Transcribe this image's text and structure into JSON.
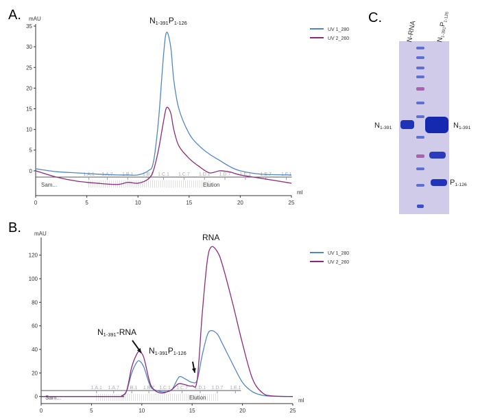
{
  "panel_labels": [
    "A.",
    "B.",
    "C."
  ],
  "chart_data": [
    {
      "type": "line",
      "y_unit": "mAU",
      "x_unit": "ml",
      "annotations": [
        {
          "label": [
            {
              "text": "N",
              "sub": "1-391"
            },
            {
              "text": "P",
              "sub": "1-126"
            }
          ]
        }
      ],
      "x": [
        0,
        2,
        4,
        6,
        8,
        9,
        10,
        11,
        11.5,
        12,
        12.5,
        12.8,
        13.2,
        13.5,
        14,
        15,
        16,
        17,
        18,
        19,
        20,
        22,
        25
      ],
      "series": [
        {
          "name": "UV 1_280",
          "color": "#4f86c6",
          "values": [
            0.5,
            -0.2,
            -0.5,
            -0.8,
            -1,
            -1,
            -1,
            0,
            2,
            12,
            28,
            33.5,
            30,
            22,
            15,
            9,
            6,
            4,
            2.5,
            1,
            0,
            -0.8,
            -1
          ]
        },
        {
          "name": "UV 2_260",
          "color": "#8b2a7a",
          "values": [
            0,
            -1.5,
            -2.5,
            -3,
            -3.3,
            -2.8,
            -3,
            -2,
            0,
            5,
            12,
            15.3,
            14,
            10,
            6,
            3,
            1,
            -0.5,
            0,
            -0.3,
            -1,
            -1.8,
            -3
          ]
        }
      ],
      "fractions": {
        "labels": [
          "1.A.1",
          "1.A.7",
          "1.B.1",
          "1.B.7",
          "1.C.1",
          "1.C.7",
          "1.D.1",
          "1.D.7",
          "1.E.1",
          "1.E.7",
          "1.F.1"
        ],
        "x": [
          5.2,
          7,
          9,
          11,
          12.5,
          14.5,
          16.5,
          18.5,
          20.5,
          22.5,
          24.5
        ]
      },
      "phases": [
        "Sam...",
        "Elution"
      ],
      "xlim": [
        0,
        25
      ],
      "xticks": [
        0,
        5,
        10,
        15,
        20,
        25
      ],
      "ylim": [
        -6,
        35.5
      ],
      "yticks": [
        0,
        5,
        10,
        15,
        20,
        25,
        30,
        35
      ]
    },
    {
      "type": "line",
      "y_unit": "mAU",
      "x_unit": "ml",
      "annotations": [
        {
          "label": [
            {
              "text": "RNA"
            }
          ]
        },
        {
          "label": [
            {
              "text": "N",
              "sub": "1-391"
            },
            {
              "text": "-RNA"
            }
          ]
        },
        {
          "label": [
            {
              "text": "N",
              "sub": "1-391"
            },
            {
              "text": "P",
              "sub": "1-126"
            }
          ]
        }
      ],
      "x": [
        0,
        7.5,
        8,
        8.5,
        9,
        9.5,
        9.8,
        10.2,
        10.7,
        11,
        11.5,
        12,
        12.5,
        13,
        13.5,
        13.8,
        14.3,
        15,
        15.5,
        16,
        16.5,
        16.9,
        17.5,
        18,
        19,
        20,
        21,
        22,
        23,
        25
      ],
      "series": [
        {
          "name": "UV 1_280",
          "color": "#4f86c6",
          "values": [
            0,
            0,
            0.5,
            5,
            20,
            29,
            30,
            25,
            12,
            7,
            5,
            4,
            4,
            6,
            14,
            17,
            15,
            12,
            14,
            35,
            52,
            56,
            53,
            45,
            28,
            12,
            4,
            1,
            0.3,
            0
          ]
        },
        {
          "name": "UV 2_260",
          "color": "#8b2a7a",
          "values": [
            0,
            0,
            0.5,
            5,
            25,
            36,
            38,
            33,
            15,
            8,
            4,
            3,
            4,
            6,
            10,
            11,
            10,
            9,
            14,
            70,
            115,
            127,
            123,
            112,
            80,
            45,
            15,
            3,
            0.5,
            0
          ]
        }
      ],
      "fractions": {
        "labels": [
          "1.A.1",
          "1.A.7",
          "1.B.1",
          "1.B.7",
          "1.C.1",
          "1.C.7",
          "1.D.1",
          "1.D.7",
          "1.E.1"
        ],
        "x": [
          5.5,
          7.2,
          9,
          10.7,
          12.3,
          14,
          15.8,
          17.5,
          19.3
        ]
      },
      "phases": [
        "Sam...",
        "Elution"
      ],
      "xlim": [
        0,
        25
      ],
      "xticks": [
        0,
        5,
        10,
        15,
        20,
        25
      ],
      "ylim": [
        -6,
        135
      ],
      "yticks": [
        0,
        20,
        40,
        60,
        80,
        100,
        120
      ]
    }
  ],
  "gel": {
    "lanes": [
      {
        "label": [
          {
            "text": "N-RNA"
          }
        ]
      },
      {
        "label": [
          {
            "text": "N",
            "sub": "1-391"
          },
          {
            "text": "P",
            "sub": "1-126"
          }
        ]
      }
    ],
    "bands": [
      {
        "label": [
          {
            "text": "N",
            "sub": "1-391"
          }
        ]
      },
      {
        "label": [
          {
            "text": "N",
            "sub": "1-391"
          }
        ]
      },
      {
        "label": [
          {
            "text": "P",
            "sub": "1-126"
          }
        ]
      }
    ]
  }
}
